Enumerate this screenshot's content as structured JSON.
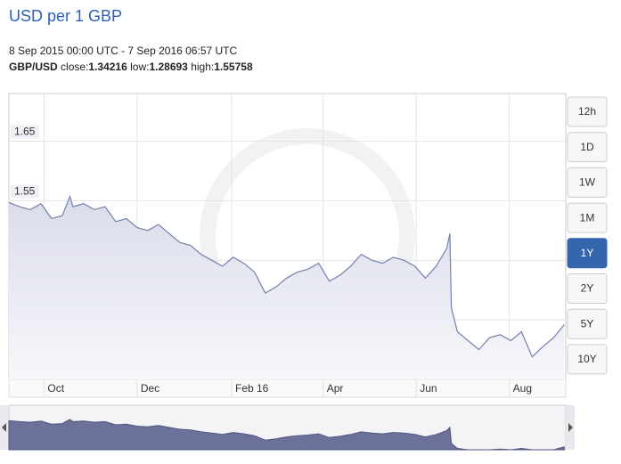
{
  "chart_data": {
    "type": "line",
    "title": "USD per 1 GBP",
    "subtitle": "8 Sep 2015 00:00 UTC - 7 Sep 2016 06:57 UTC",
    "stats": [
      {
        "label": "close:",
        "value": 1.34216
      },
      {
        "label": "low:",
        "value": 1.28693
      },
      {
        "label": "high:",
        "value": 1.55758
      }
    ],
    "range_buttons": [
      "12h",
      "1D",
      "1W",
      "1M",
      "1Y",
      "2Y",
      "5Y",
      "10Y"
    ],
    "selected_range": "1Y",
    "x": [
      0,
      7,
      14,
      21,
      28,
      35,
      40,
      42,
      49,
      56,
      63,
      70,
      77,
      84,
      91,
      98,
      105,
      112,
      119,
      126,
      133,
      140,
      147,
      154,
      161,
      168,
      175,
      182,
      189,
      196,
      203,
      210,
      217,
      224,
      231,
      238,
      245,
      252,
      259,
      266,
      273,
      280,
      287,
      289,
      290,
      294,
      301,
      308,
      315,
      322,
      329,
      336,
      343,
      350,
      357,
      364
    ],
    "series": [
      {
        "name": "GBP/USD",
        "color": "#7480ad",
        "values": [
          1.547,
          1.54,
          1.535,
          1.545,
          1.52,
          1.525,
          1.557,
          1.54,
          1.545,
          1.535,
          1.54,
          1.515,
          1.52,
          1.505,
          1.5,
          1.51,
          1.495,
          1.48,
          1.475,
          1.46,
          1.45,
          1.44,
          1.455,
          1.445,
          1.43,
          1.395,
          1.405,
          1.42,
          1.43,
          1.435,
          1.445,
          1.415,
          1.425,
          1.44,
          1.46,
          1.45,
          1.445,
          1.455,
          1.45,
          1.44,
          1.42,
          1.44,
          1.47,
          1.495,
          1.37,
          1.33,
          1.315,
          1.3,
          1.32,
          1.325,
          1.315,
          1.33,
          1.288,
          1.305,
          1.32,
          1.342
        ]
      }
    ],
    "xlim": [
      0,
      365
    ],
    "xticks": [
      {
        "value": 23,
        "label": "Oct"
      },
      {
        "value": 84,
        "label": "Dec"
      },
      {
        "value": 146,
        "label": "Feb 16"
      },
      {
        "value": 206,
        "label": "Apr"
      },
      {
        "value": 267,
        "label": "Jun"
      },
      {
        "value": 328,
        "label": "Aug"
      }
    ],
    "ylim": [
      1.25,
      1.73
    ],
    "yticks": [
      1.25,
      1.35,
      1.45,
      1.55,
      1.65
    ],
    "grid": true
  }
}
